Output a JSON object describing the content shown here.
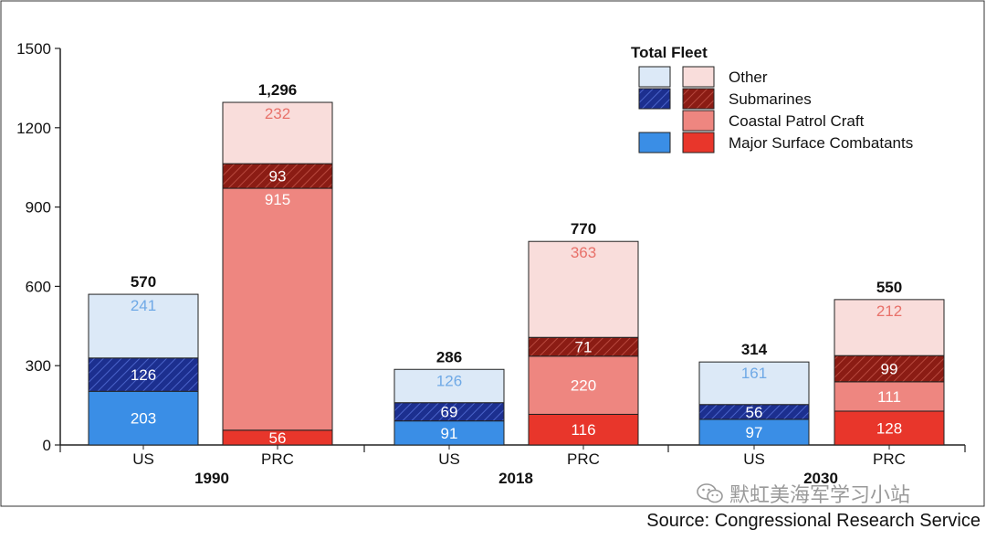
{
  "chart_data": {
    "type": "bar",
    "stacked": true,
    "groups": [
      {
        "label": "1990",
        "bars": [
          {
            "label": "US",
            "side": "us",
            "total_label": "570",
            "values": [
              203,
              126,
              0,
              241
            ],
            "labels": [
              "203",
              "126",
              "",
              "241"
            ]
          },
          {
            "label": "PRC",
            "side": "prc",
            "total_label": "1,296",
            "values": [
              56,
              915,
              93,
              232
            ],
            "labels": [
              "56",
              "915",
              "93",
              "232"
            ]
          }
        ]
      },
      {
        "label": "2018",
        "bars": [
          {
            "label": "US",
            "side": "us",
            "total_label": "286",
            "values": [
              91,
              69,
              0,
              126
            ],
            "labels": [
              "91",
              "69",
              "",
              "126"
            ]
          },
          {
            "label": "PRC",
            "side": "prc",
            "total_label": "770",
            "values": [
              116,
              220,
              71,
              363
            ],
            "labels": [
              "116",
              "220",
              "71",
              "363"
            ]
          }
        ]
      },
      {
        "label": "2030",
        "bars": [
          {
            "label": "US",
            "side": "us",
            "total_label": "314",
            "values": [
              97,
              56,
              0,
              161
            ],
            "labels": [
              "97",
              "56",
              "",
              "161"
            ]
          },
          {
            "label": "PRC",
            "side": "prc",
            "total_label": "550",
            "values": [
              128,
              111,
              99,
              212
            ],
            "labels": [
              "128",
              "111",
              "99",
              "212"
            ]
          }
        ]
      }
    ],
    "segment_order": [
      "Major Surface Combatants",
      "Submarines/Coastal Patrol Craft",
      "Submarines",
      "Other"
    ],
    "ylim": [
      0,
      1500
    ],
    "yticks": [
      "0",
      "300",
      "600",
      "900",
      "1200",
      "1500"
    ],
    "legend": {
      "title": "Total Fleet",
      "position": "top-right",
      "entries": [
        "Other",
        "Submarines",
        "Coastal Patrol Craft",
        "Major Surface Combatants"
      ]
    },
    "colors": {
      "us_major": "#3a8ee6",
      "us_sub": "#1c2f8f",
      "us_other": "#dce9f7",
      "prc_major": "#e8362b",
      "prc_coastal": "#ee8680",
      "prc_sub": "#8b1c14",
      "prc_other": "#f9dddb"
    }
  },
  "source": "Source: Congressional Research Service",
  "watermark": "默虹美海军学习小站"
}
